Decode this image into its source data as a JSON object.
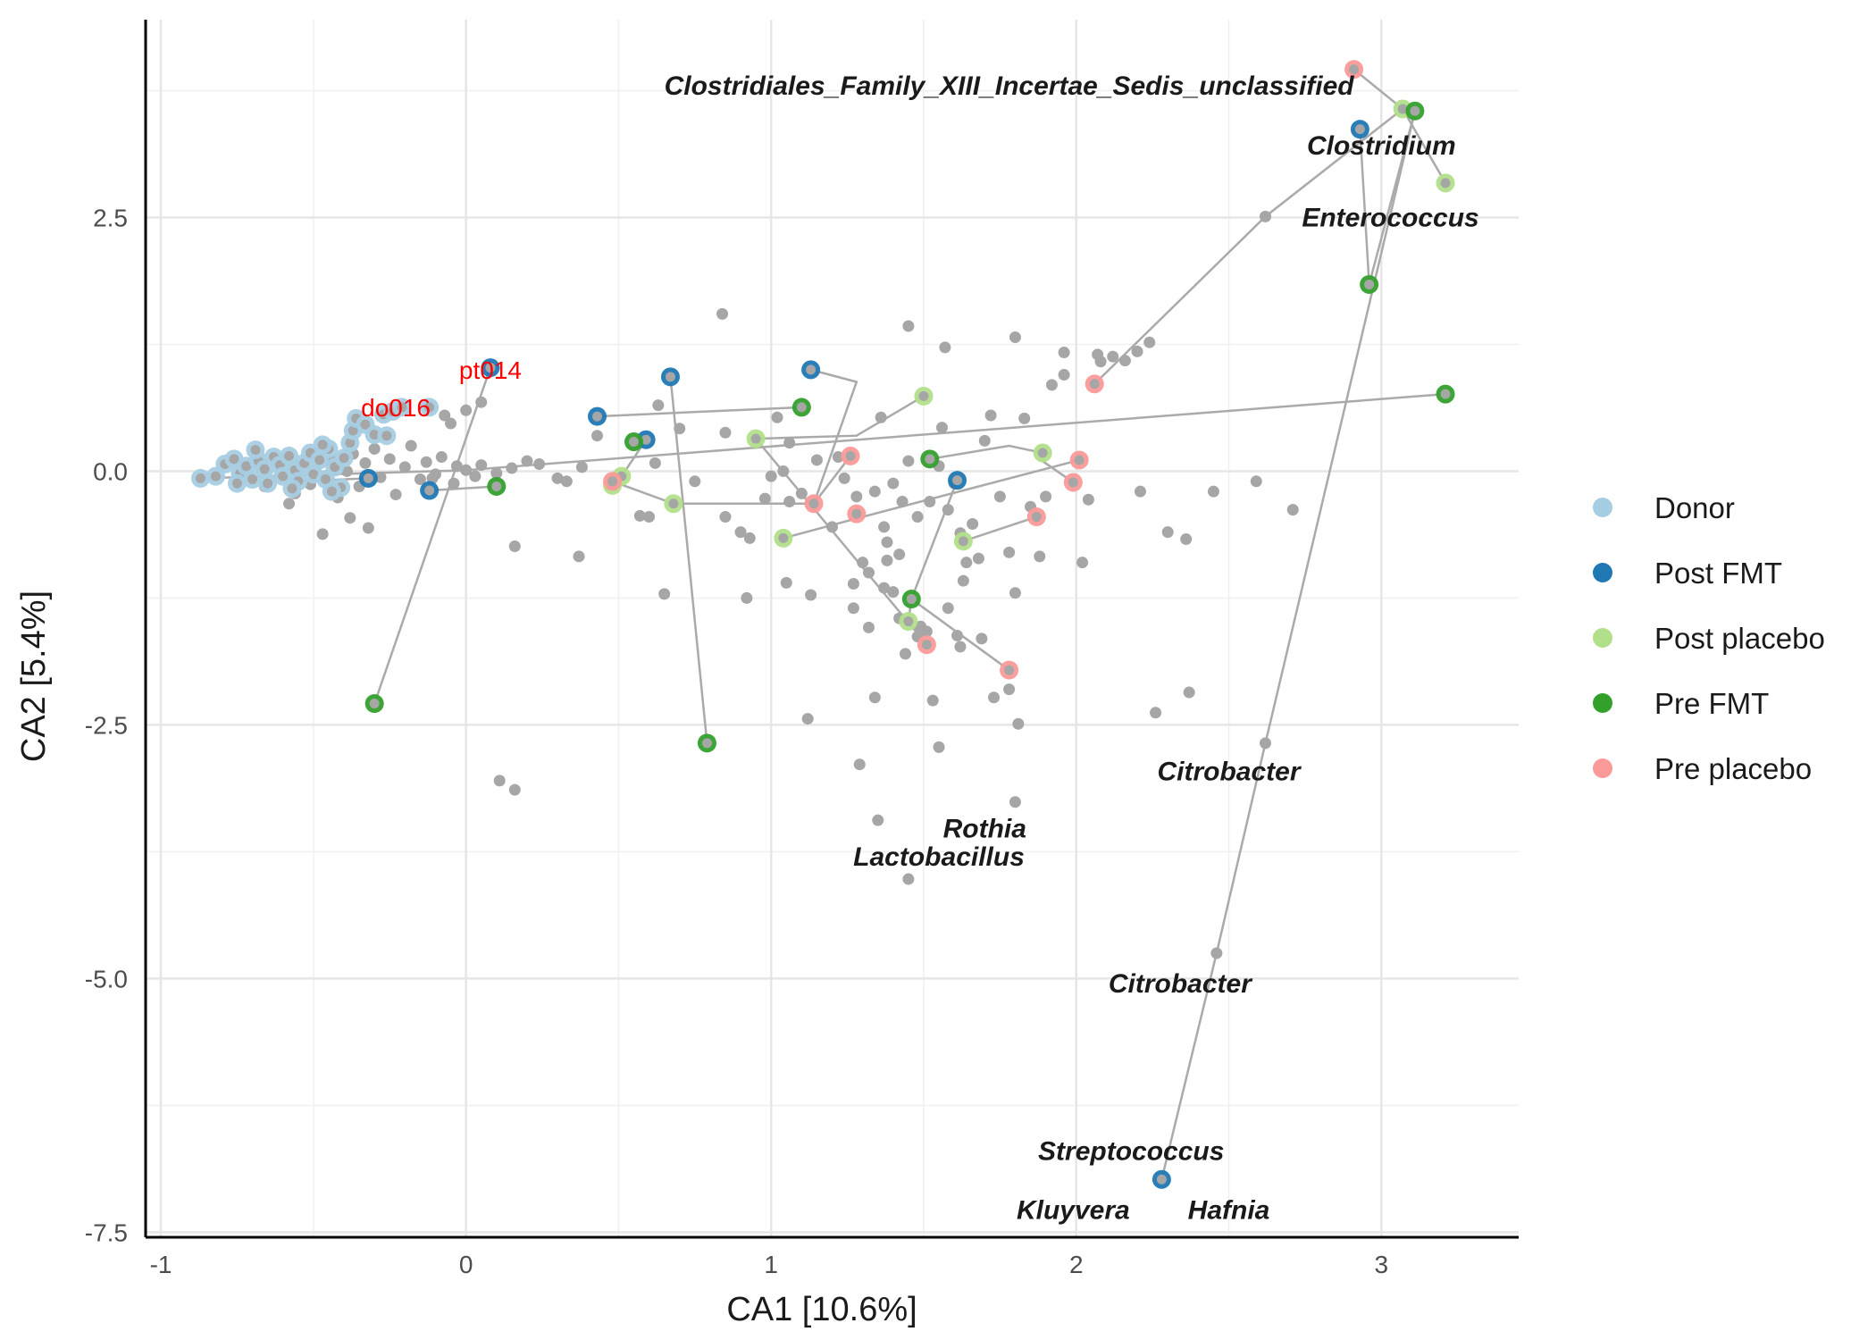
{
  "chart_data": {
    "type": "scatter",
    "xlabel": "CA1 [10.6%]",
    "ylabel": "CA2 [5.4%]",
    "xlim": [
      -1.05,
      3.45
    ],
    "ylim": [
      -7.55,
      4.45
    ],
    "x_ticks": [
      -1,
      0,
      1,
      2,
      3
    ],
    "x_tick_labels": [
      "-1",
      "0",
      "1",
      "2",
      "3"
    ],
    "y_ticks": [
      -7.5,
      -5.0,
      -2.5,
      0.0,
      2.5
    ],
    "y_tick_labels": [
      "-7.5",
      "-5.0",
      "-2.5",
      "0.0",
      "2.5"
    ],
    "grid": true,
    "legend_position": "right",
    "groups": [
      {
        "name": "Donor",
        "color": "#a6cee3"
      },
      {
        "name": "Post FMT",
        "color": "#1f78b4"
      },
      {
        "name": "Post placebo",
        "color": "#b2df8a"
      },
      {
        "name": "Pre FMT",
        "color": "#33a02c"
      },
      {
        "name": "Pre placebo",
        "color": "#fb9a99"
      }
    ],
    "donor_points": [
      [
        -0.87,
        -0.07
      ],
      [
        -0.82,
        -0.05
      ],
      [
        -0.79,
        0.07
      ],
      [
        -0.76,
        0.12
      ],
      [
        -0.74,
        -0.02
      ],
      [
        -0.72,
        0.05
      ],
      [
        -0.7,
        -0.08
      ],
      [
        -0.68,
        0.1
      ],
      [
        -0.66,
        0.02
      ],
      [
        -0.65,
        -0.12
      ],
      [
        -0.63,
        0.14
      ],
      [
        -0.61,
        0.06
      ],
      [
        -0.6,
        -0.05
      ],
      [
        -0.58,
        0.15
      ],
      [
        -0.56,
        0.01
      ],
      [
        -0.55,
        -0.1
      ],
      [
        -0.53,
        0.08
      ],
      [
        -0.51,
        0.18
      ],
      [
        -0.5,
        -0.03
      ],
      [
        -0.48,
        0.11
      ],
      [
        -0.46,
        -0.08
      ],
      [
        -0.45,
        0.22
      ],
      [
        -0.43,
        0.04
      ],
      [
        -0.41,
        -0.16
      ],
      [
        -0.4,
        0.13
      ],
      [
        -0.38,
        0.28
      ],
      [
        -0.37,
        0.4
      ],
      [
        -0.36,
        0.52
      ],
      [
        -0.33,
        0.46
      ],
      [
        -0.3,
        0.36
      ],
      [
        -0.27,
        0.56
      ],
      [
        -0.26,
        0.35
      ],
      [
        -0.24,
        0.59
      ],
      [
        -0.21,
        0.63
      ],
      [
        -0.12,
        0.63
      ],
      [
        -0.47,
        0.26
      ],
      [
        -0.44,
        -0.2
      ],
      [
        -0.69,
        0.21
      ],
      [
        -0.75,
        -0.12
      ],
      [
        -0.57,
        -0.17
      ]
    ],
    "post_fmt_points": [
      [
        2.93,
        3.37
      ],
      [
        0.08,
        1.02
      ],
      [
        0.67,
        0.93
      ],
      [
        1.13,
        1.0
      ],
      [
        0.43,
        0.54
      ],
      [
        0.59,
        0.31
      ],
      [
        -0.32,
        -0.07
      ],
      [
        -0.12,
        -0.19
      ],
      [
        1.61,
        -0.09
      ],
      [
        2.28,
        -6.98
      ]
    ],
    "post_placebo_points": [
      [
        3.07,
        3.57
      ],
      [
        3.21,
        2.84
      ],
      [
        1.5,
        0.74
      ],
      [
        0.95,
        0.32
      ],
      [
        0.51,
        -0.05
      ],
      [
        0.48,
        -0.14
      ],
      [
        0.68,
        -0.32
      ],
      [
        1.04,
        -0.66
      ],
      [
        1.63,
        -0.69
      ],
      [
        1.89,
        0.18
      ],
      [
        1.45,
        -1.48
      ]
    ],
    "pre_fmt_points": [
      [
        3.11,
        3.55
      ],
      [
        2.96,
        1.84
      ],
      [
        3.21,
        0.76
      ],
      [
        1.1,
        0.63
      ],
      [
        0.55,
        0.29
      ],
      [
        1.52,
        0.12
      ],
      [
        0.1,
        -0.15
      ],
      [
        1.46,
        -1.26
      ],
      [
        -0.3,
        -2.29
      ],
      [
        0.79,
        -2.68
      ]
    ],
    "pre_placebo_points": [
      [
        2.91,
        3.96
      ],
      [
        2.06,
        0.86
      ],
      [
        1.26,
        0.15
      ],
      [
        2.01,
        0.11
      ],
      [
        1.99,
        -0.11
      ],
      [
        1.14,
        -0.32
      ],
      [
        1.28,
        -0.42
      ],
      [
        1.87,
        -0.45
      ],
      [
        0.48,
        -0.1
      ],
      [
        1.51,
        -1.71
      ],
      [
        1.78,
        -1.96
      ]
    ],
    "other_points": [
      [
        -0.73,
        -0.04
      ],
      [
        -0.7,
        0.08
      ],
      [
        -0.66,
        -0.15
      ],
      [
        -0.61,
        0.11
      ],
      [
        -0.58,
        0.0
      ],
      [
        -0.56,
        -0.22
      ],
      [
        -0.53,
        0.05
      ],
      [
        -0.51,
        -0.13
      ],
      [
        -0.49,
        0.16
      ],
      [
        -0.47,
        -0.05
      ],
      [
        -0.44,
        0.1
      ],
      [
        -0.42,
        -0.26
      ],
      [
        -0.39,
        0.0
      ],
      [
        -0.37,
        0.17
      ],
      [
        -0.35,
        -0.15
      ],
      [
        -0.33,
        0.08
      ],
      [
        -0.3,
        0.22
      ],
      [
        -0.28,
        -0.06
      ],
      [
        -0.25,
        0.12
      ],
      [
        -0.23,
        -0.23
      ],
      [
        -0.2,
        0.04
      ],
      [
        -0.18,
        0.25
      ],
      [
        -0.15,
        -0.08
      ],
      [
        -0.13,
        0.09
      ],
      [
        -0.1,
        -0.03
      ],
      [
        -0.08,
        0.14
      ],
      [
        -0.05,
        0.47
      ],
      [
        -0.04,
        -0.12
      ],
      [
        -0.03,
        0.05
      ],
      [
        0.0,
        0.01
      ],
      [
        0.03,
        -0.05
      ],
      [
        0.05,
        0.06
      ],
      [
        0.1,
        -0.02
      ],
      [
        0.15,
        0.03
      ],
      [
        0.2,
        0.1
      ],
      [
        0.24,
        0.07
      ],
      [
        0.3,
        -0.07
      ],
      [
        0.33,
        -0.1
      ],
      [
        0.38,
        0.04
      ],
      [
        0.43,
        0.35
      ],
      [
        -0.58,
        -0.32
      ],
      [
        -0.47,
        -0.62
      ],
      [
        -0.38,
        -0.46
      ],
      [
        -0.32,
        -0.56
      ],
      [
        -0.11,
        -0.07
      ],
      [
        -0.07,
        0.55
      ],
      [
        0.0,
        0.6
      ],
      [
        0.05,
        0.68
      ],
      [
        0.16,
        -0.74
      ],
      [
        0.37,
        -0.84
      ],
      [
        0.57,
        -0.44
      ],
      [
        0.65,
        -1.21
      ],
      [
        0.62,
        0.08
      ],
      [
        0.6,
        -0.45
      ],
      [
        0.75,
        -0.1
      ],
      [
        0.85,
        -0.45
      ],
      [
        0.9,
        -0.6
      ],
      [
        0.93,
        -0.66
      ],
      [
        0.98,
        -0.27
      ],
      [
        1.0,
        -0.05
      ],
      [
        1.04,
        0.0
      ],
      [
        1.06,
        -0.3
      ],
      [
        1.1,
        -0.22
      ],
      [
        1.15,
        0.11
      ],
      [
        1.2,
        -0.55
      ],
      [
        1.22,
        0.14
      ],
      [
        1.24,
        -0.07
      ],
      [
        1.28,
        -0.25
      ],
      [
        1.3,
        -0.9
      ],
      [
        1.32,
        -1.0
      ],
      [
        1.34,
        -0.2
      ],
      [
        1.37,
        -0.55
      ],
      [
        1.38,
        -0.7
      ],
      [
        1.4,
        -0.12
      ],
      [
        1.42,
        -0.82
      ],
      [
        1.43,
        -0.3
      ],
      [
        1.45,
        0.1
      ],
      [
        1.48,
        -0.45
      ],
      [
        1.52,
        -0.3
      ],
      [
        1.55,
        0.05
      ],
      [
        1.58,
        -0.38
      ],
      [
        1.6,
        -0.12
      ],
      [
        1.62,
        -0.61
      ],
      [
        1.64,
        -0.9
      ],
      [
        1.66,
        -0.52
      ],
      [
        1.68,
        -0.86
      ],
      [
        1.7,
        0.3
      ],
      [
        1.75,
        -0.25
      ],
      [
        1.78,
        -0.8
      ],
      [
        1.8,
        -1.2
      ],
      [
        1.83,
        0.52
      ],
      [
        1.85,
        -0.35
      ],
      [
        1.88,
        -0.84
      ],
      [
        1.9,
        -0.25
      ],
      [
        1.92,
        0.85
      ],
      [
        1.96,
        0.95
      ],
      [
        2.02,
        -0.9
      ],
      [
        2.04,
        -0.28
      ],
      [
        2.07,
        1.15
      ],
      [
        2.12,
        1.13
      ],
      [
        2.16,
        1.09
      ],
      [
        2.2,
        1.18
      ],
      [
        2.24,
        1.27
      ],
      [
        2.3,
        -0.6
      ],
      [
        2.36,
        -0.67
      ],
      [
        2.45,
        -0.2
      ],
      [
        2.59,
        -0.1
      ],
      [
        2.62,
        2.51
      ],
      [
        2.71,
        -0.38
      ],
      [
        2.26,
        -2.38
      ],
      [
        2.37,
        -2.18
      ],
      [
        2.46,
        -4.75
      ],
      [
        2.62,
        -2.68
      ],
      [
        1.72,
        0.55
      ],
      [
        1.56,
        0.43
      ],
      [
        1.45,
        1.43
      ],
      [
        1.36,
        0.53
      ],
      [
        1.06,
        0.28
      ],
      [
        1.02,
        0.53
      ],
      [
        0.85,
        0.38
      ],
      [
        0.7,
        0.42
      ],
      [
        0.63,
        0.65
      ],
      [
        0.84,
        1.55
      ],
      [
        1.27,
        -1.35
      ],
      [
        1.13,
        -1.22
      ],
      [
        1.05,
        -1.1
      ],
      [
        0.92,
        -1.25
      ],
      [
        1.57,
        1.22
      ],
      [
        1.8,
        1.32
      ],
      [
        1.96,
        1.17
      ],
      [
        2.08,
        1.08
      ],
      [
        1.34,
        -2.23
      ],
      [
        1.53,
        -2.26
      ],
      [
        1.55,
        -2.72
      ],
      [
        1.73,
        -2.23
      ],
      [
        1.81,
        -2.49
      ],
      [
        1.62,
        -1.73
      ],
      [
        1.44,
        -1.8
      ],
      [
        1.61,
        -1.62
      ],
      [
        1.69,
        -1.65
      ],
      [
        1.49,
        -1.53
      ],
      [
        1.51,
        -1.58
      ],
      [
        1.78,
        -2.15
      ],
      [
        1.8,
        -3.26
      ],
      [
        1.29,
        -2.89
      ],
      [
        1.35,
        -3.44
      ],
      [
        1.45,
        -4.02
      ],
      [
        1.12,
        -2.44
      ],
      [
        0.11,
        -3.05
      ],
      [
        0.16,
        -3.14
      ],
      [
        1.27,
        -1.11
      ],
      [
        1.4,
        -1.19
      ],
      [
        1.37,
        -1.15
      ],
      [
        1.48,
        -1.63
      ],
      [
        1.38,
        -0.88
      ],
      [
        2.21,
        -0.2
      ],
      [
        1.58,
        -1.35
      ],
      [
        1.42,
        -1.45
      ],
      [
        1.32,
        -1.54
      ],
      [
        1.63,
        -1.08
      ]
    ],
    "paths": [
      [
        [
          -0.87,
          -0.07
        ],
        [
          0.0,
          0.01
        ],
        [
          3.21,
          0.76
        ]
      ],
      [
        [
          -0.32,
          -0.07
        ],
        [
          -0.55,
          -0.1
        ]
      ],
      [
        [
          0.08,
          1.02
        ],
        [
          -0.3,
          -2.29
        ]
      ],
      [
        [
          -0.12,
          -0.19
        ],
        [
          0.1,
          -0.15
        ]
      ],
      [
        [
          0.67,
          0.93
        ],
        [
          0.79,
          -2.68
        ]
      ],
      [
        [
          0.43,
          0.54
        ],
        [
          1.1,
          0.63
        ]
      ],
      [
        [
          1.13,
          1.0
        ],
        [
          1.28,
          0.88
        ],
        [
          1.14,
          -0.32
        ],
        [
          1.26,
          0.15
        ]
      ],
      [
        [
          0.55,
          0.29
        ],
        [
          0.59,
          0.31
        ],
        [
          0.51,
          -0.05
        ]
      ],
      [
        [
          0.48,
          -0.1
        ],
        [
          0.68,
          -0.32
        ],
        [
          1.14,
          -0.32
        ]
      ],
      [
        [
          1.5,
          0.74
        ],
        [
          1.28,
          0.35
        ],
        [
          0.95,
          0.32
        ]
      ],
      [
        [
          0.95,
          0.32
        ],
        [
          1.51,
          -1.71
        ]
      ],
      [
        [
          1.04,
          -0.66
        ],
        [
          1.3,
          -0.45
        ],
        [
          2.01,
          0.11
        ]
      ],
      [
        [
          1.52,
          0.12
        ],
        [
          1.78,
          0.25
        ],
        [
          1.89,
          0.18
        ]
      ],
      [
        [
          1.61,
          -0.09
        ],
        [
          1.46,
          -1.26
        ],
        [
          1.45,
          -1.48
        ],
        [
          1.51,
          -1.71
        ]
      ],
      [
        [
          1.46,
          -1.26
        ],
        [
          1.78,
          -1.96
        ]
      ],
      [
        [
          1.63,
          -0.69
        ],
        [
          1.87,
          -0.45
        ]
      ],
      [
        [
          1.99,
          -0.11
        ],
        [
          1.88,
          0.12
        ]
      ],
      [
        [
          2.06,
          0.86
        ],
        [
          2.62,
          2.51
        ],
        [
          3.07,
          3.57
        ]
      ],
      [
        [
          2.91,
          3.96
        ],
        [
          3.07,
          3.57
        ],
        [
          3.21,
          2.84
        ]
      ],
      [
        [
          2.93,
          3.37
        ],
        [
          2.96,
          1.84
        ],
        [
          3.11,
          3.55
        ]
      ],
      [
        [
          3.11,
          3.55
        ],
        [
          2.62,
          -2.68
        ],
        [
          2.46,
          -4.75
        ],
        [
          2.28,
          -6.98
        ]
      ]
    ],
    "taxa_labels": [
      {
        "text": "Clostridiales_Family_XIII_Incertae_Sedis_unclassified",
        "x": 1.78,
        "y": 3.8
      },
      {
        "text": "Clostridium",
        "x": 3.0,
        "y": 3.21
      },
      {
        "text": "Enterococcus",
        "x": 3.03,
        "y": 2.5
      },
      {
        "text": "Citrobacter",
        "x": 2.5,
        "y": -2.96
      },
      {
        "text": "Rothia",
        "x": 1.7,
        "y": -3.52
      },
      {
        "text": "Lactobacillus",
        "x": 1.55,
        "y": -3.8
      },
      {
        "text": "Citrobacter",
        "x": 2.34,
        "y": -5.05
      },
      {
        "text": "Streptococcus",
        "x": 2.18,
        "y": -6.7
      },
      {
        "text": "Kluyvera",
        "x": 1.99,
        "y": -7.28
      },
      {
        "text": "Hafnia",
        "x": 2.5,
        "y": -7.28
      }
    ],
    "sample_labels": [
      {
        "text": "pt014",
        "x": 0.08,
        "y": 1.0
      },
      {
        "text": "do016",
        "x": -0.23,
        "y": 0.63
      }
    ]
  }
}
